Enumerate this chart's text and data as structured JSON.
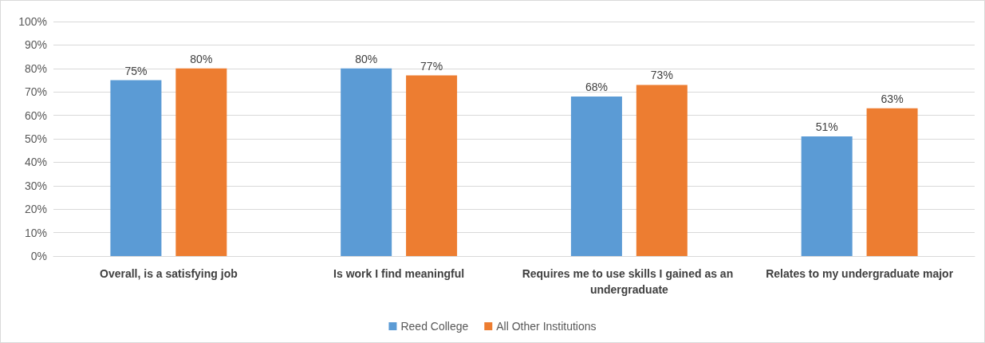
{
  "chart_data": {
    "type": "bar",
    "categories": [
      "Overall, is a satisfying job",
      "Is work I find meaningful",
      "Requires me to use skills I gained as an undergraduate",
      "Relates to my undergraduate major"
    ],
    "series": [
      {
        "name": "Reed College",
        "color": "#5b9bd5",
        "values": [
          75,
          80,
          68,
          51
        ],
        "value_labels": [
          "75%",
          "80%",
          "68%",
          "51%"
        ]
      },
      {
        "name": "All Other Institutions",
        "color": "#ed7d31",
        "values": [
          80,
          77,
          73,
          63
        ],
        "value_labels": [
          "80%",
          "77%",
          "73%",
          "63%"
        ]
      }
    ],
    "ylim": [
      0,
      100
    ],
    "yticks": [
      {
        "value": 0,
        "label": "0%"
      },
      {
        "value": 10,
        "label": "10%"
      },
      {
        "value": 20,
        "label": "20%"
      },
      {
        "value": 30,
        "label": "30%"
      },
      {
        "value": 40,
        "label": "40%"
      },
      {
        "value": 50,
        "label": "50%"
      },
      {
        "value": 60,
        "label": "60%"
      },
      {
        "value": 70,
        "label": "70%"
      },
      {
        "value": 80,
        "label": "80%"
      },
      {
        "value": 90,
        "label": "90%"
      },
      {
        "value": 100,
        "label": "100%"
      }
    ],
    "grid": "y",
    "legend": "bottom"
  }
}
